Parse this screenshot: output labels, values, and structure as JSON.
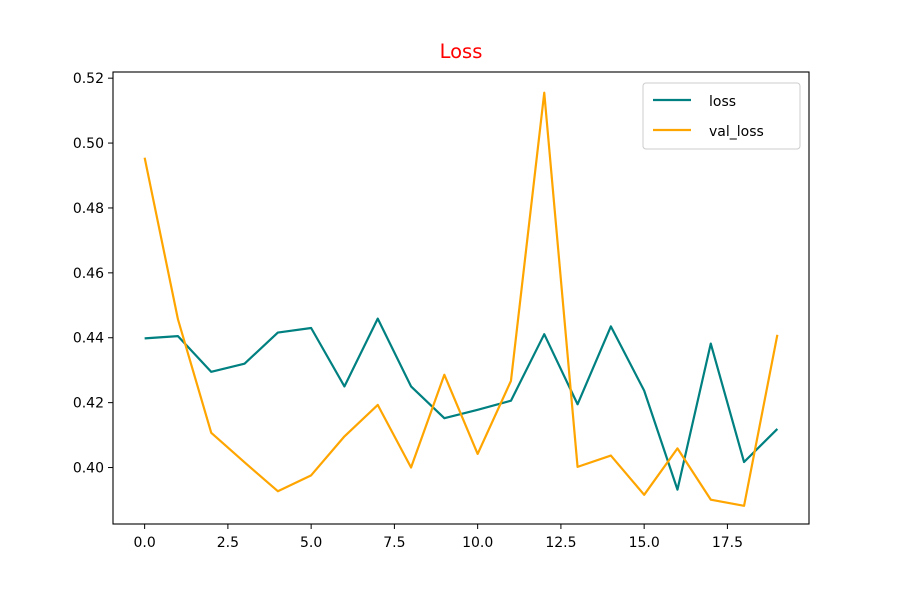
{
  "chart_data": {
    "type": "line",
    "title": "Loss",
    "title_color": "#ff0000",
    "xlabel": "",
    "ylabel": "",
    "xlim": [
      -0.95,
      19.95
    ],
    "ylim": [
      0.3826,
      0.5219
    ],
    "xticks": [
      0.0,
      2.5,
      5.0,
      7.5,
      10.0,
      12.5,
      15.0,
      17.5
    ],
    "xtick_labels": [
      "0.0",
      "2.5",
      "5.0",
      "7.5",
      "10.0",
      "12.5",
      "15.0",
      "17.5"
    ],
    "yticks": [
      0.4,
      0.42,
      0.44,
      0.46,
      0.48,
      0.5,
      0.52
    ],
    "ytick_labels": [
      "0.40",
      "0.42",
      "0.44",
      "0.46",
      "0.48",
      "0.50",
      "0.52"
    ],
    "grid": false,
    "legend_position": "top-right",
    "x": [
      0,
      1,
      2,
      3,
      4,
      5,
      6,
      7,
      8,
      9,
      10,
      11,
      12,
      13,
      14,
      15,
      16,
      17,
      18,
      19
    ],
    "series": [
      {
        "name": "loss",
        "color": "#008080",
        "values": [
          0.4398,
          0.4405,
          0.4295,
          0.432,
          0.4416,
          0.443,
          0.425,
          0.4459,
          0.425,
          0.4152,
          0.4178,
          0.4206,
          0.4411,
          0.4195,
          0.4435,
          0.4237,
          0.3932,
          0.4382,
          0.4017,
          0.4119
        ]
      },
      {
        "name": "val_loss",
        "color": "#ffa500",
        "values": [
          0.4955,
          0.4457,
          0.4107,
          0.4016,
          0.3927,
          0.3976,
          0.4096,
          0.4193,
          0.4,
          0.4286,
          0.4042,
          0.4267,
          0.5155,
          0.4002,
          0.4037,
          0.3916,
          0.4059,
          0.3901,
          0.3882,
          0.4409
        ]
      }
    ]
  }
}
